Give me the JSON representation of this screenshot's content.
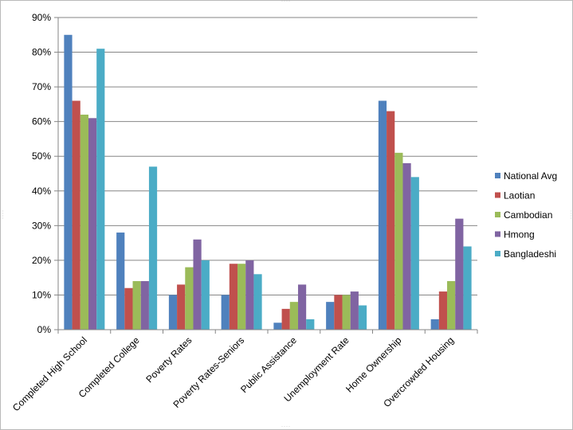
{
  "chart_data": {
    "type": "bar",
    "categories": [
      "Completed High School",
      "Completed College",
      "Poverty Rates",
      "Poverty Rates-Seniors",
      "Public Assistance",
      "Unemployment Rate",
      "Home Ownership",
      "Overcrowded Housing"
    ],
    "series": [
      {
        "name": "National Avg",
        "color": "#4f81bd",
        "values": [
          85,
          28,
          10,
          10,
          2,
          8,
          66,
          3
        ]
      },
      {
        "name": "Laotian",
        "color": "#c0504d",
        "values": [
          66,
          12,
          13,
          19,
          6,
          10,
          63,
          11
        ]
      },
      {
        "name": "Cambodian",
        "color": "#9bbb59",
        "values": [
          62,
          14,
          18,
          19,
          8,
          10,
          51,
          14
        ]
      },
      {
        "name": "Hmong",
        "color": "#8064a2",
        "values": [
          61,
          14,
          26,
          20,
          13,
          11,
          48,
          32
        ]
      },
      {
        "name": "Bangladeshi",
        "color": "#4bacc6",
        "values": [
          81,
          47,
          20,
          16,
          3,
          7,
          44,
          24
        ]
      }
    ],
    "ylim": [
      0,
      90
    ],
    "yticks": [
      "0%",
      "10%",
      "20%",
      "30%",
      "40%",
      "50%",
      "60%",
      "70%",
      "80%",
      "90%"
    ],
    "unit": "%",
    "grid": true,
    "legend_position": "right",
    "title": "",
    "xlabel": "",
    "ylabel": ""
  }
}
